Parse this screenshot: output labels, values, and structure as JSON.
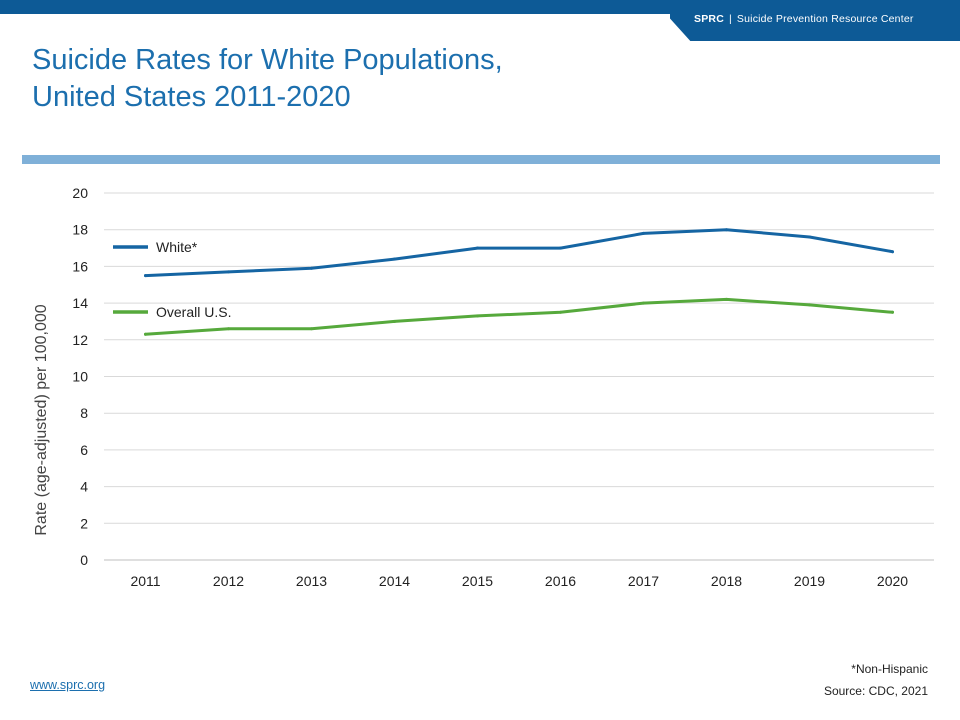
{
  "header": {
    "org_abbr": "SPRC",
    "separator": "|",
    "org_name": "Suicide Prevention Resource Center"
  },
  "title": {
    "line1": "Suicide Rates for White Populations,",
    "line2": "United States 2011-2020"
  },
  "colors": {
    "brand_blue": "#0d5a96",
    "accent_light_blue": "#7fb0d8",
    "white_series": "#1565a3",
    "overall_series": "#56a93c"
  },
  "chart_data": {
    "type": "line",
    "ylabel": "Rate (age-adjusted) per 100,000",
    "xlabel": "",
    "ylim": [
      0,
      20
    ],
    "y_ticks": [
      "0",
      "2",
      "4",
      "6",
      "8",
      "10",
      "12",
      "14",
      "16",
      "18",
      "20"
    ],
    "x": [
      "2011",
      "2012",
      "2013",
      "2014",
      "2015",
      "2016",
      "2017",
      "2018",
      "2019",
      "2020"
    ],
    "grid": "horizontal",
    "legend": "inline-left",
    "series": [
      {
        "name": "White*",
        "color": "#1565a3",
        "values": [
          15.5,
          15.7,
          15.9,
          16.4,
          17.0,
          17.0,
          17.8,
          18.0,
          17.6,
          16.8
        ]
      },
      {
        "name": "Overall U.S.",
        "color": "#56a93c",
        "values": [
          12.3,
          12.6,
          12.6,
          13.0,
          13.3,
          13.5,
          14.0,
          14.2,
          13.9,
          13.5
        ]
      }
    ]
  },
  "footer": {
    "website": "www.sprc.org",
    "footnote": "*Non-Hispanic",
    "source": "Source: CDC, 2021"
  }
}
